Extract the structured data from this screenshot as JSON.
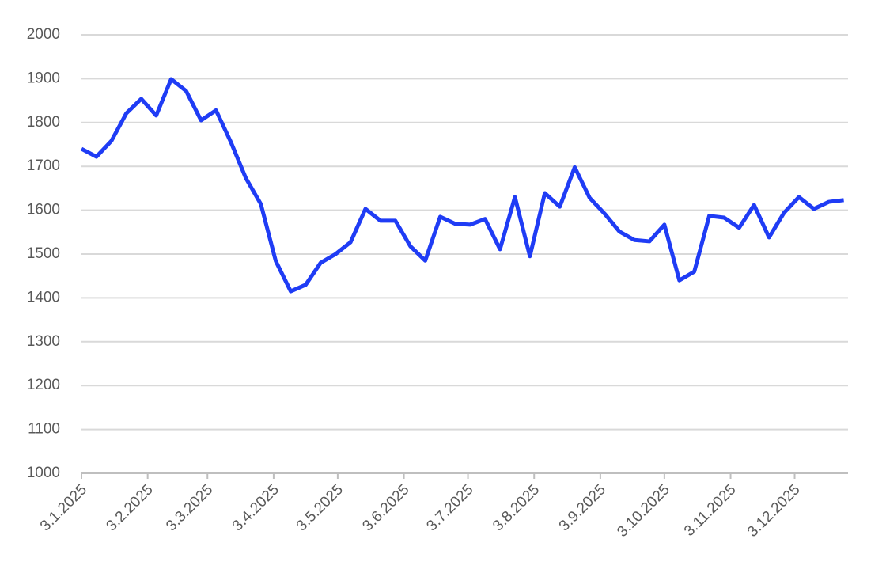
{
  "chart_data": {
    "type": "line",
    "x": [
      "2025-01-03",
      "2025-01-10",
      "2025-01-17",
      "2025-01-24",
      "2025-01-31",
      "2025-02-07",
      "2025-02-14",
      "2025-02-21",
      "2025-02-28",
      "2025-03-07",
      "2025-03-14",
      "2025-03-21",
      "2025-03-28",
      "2025-04-04",
      "2025-04-11",
      "2025-04-18",
      "2025-04-25",
      "2025-05-02",
      "2025-05-09",
      "2025-05-16",
      "2025-05-23",
      "2025-05-30",
      "2025-06-06",
      "2025-06-13",
      "2025-06-20",
      "2025-06-27",
      "2025-07-04",
      "2025-07-11",
      "2025-07-18",
      "2025-07-25",
      "2025-08-01",
      "2025-08-08",
      "2025-08-15",
      "2025-08-22",
      "2025-08-29",
      "2025-09-05",
      "2025-09-12",
      "2025-09-19",
      "2025-09-26",
      "2025-10-03",
      "2025-10-10",
      "2025-10-17",
      "2025-10-24",
      "2025-10-31",
      "2025-11-07",
      "2025-11-14",
      "2025-11-21",
      "2025-11-28",
      "2025-12-05",
      "2025-12-12",
      "2025-12-19",
      "2025-12-26"
    ],
    "series": [
      {
        "color": "#1f3cf5",
        "values": [
          1740,
          1722,
          1758,
          1821,
          1854,
          1816,
          1899,
          1872,
          1805,
          1828,
          1755,
          1673,
          1614,
          1484,
          1415,
          1430,
          1480,
          1500,
          1527,
          1603,
          1576,
          1576,
          1518,
          1485,
          1585,
          1569,
          1567,
          1580,
          1511,
          1630,
          1495,
          1639,
          1608,
          1698,
          1628,
          1592,
          1551,
          1532,
          1529,
          1567,
          1440,
          1460,
          1587,
          1583,
          1560,
          1612,
          1538,
          1594,
          1630,
          1603,
          1619,
          1623
        ]
      }
    ],
    "xlim": [
      "2025-01-03",
      "2025-12-28"
    ],
    "xticks": [
      {
        "value": "2025-01-03",
        "label": "3.1.2025"
      },
      {
        "value": "2025-02-03",
        "label": "3.2.2025"
      },
      {
        "value": "2025-03-03",
        "label": "3.3.2025"
      },
      {
        "value": "2025-04-03",
        "label": "3.4.2025"
      },
      {
        "value": "2025-05-03",
        "label": "3.5.2025"
      },
      {
        "value": "2025-06-03",
        "label": "3.6.2025"
      },
      {
        "value": "2025-07-03",
        "label": "3.7.2025"
      },
      {
        "value": "2025-08-03",
        "label": "3.8.2025"
      },
      {
        "value": "2025-09-03",
        "label": "3.9.2025"
      },
      {
        "value": "2025-10-03",
        "label": "3.10.2025"
      },
      {
        "value": "2025-11-03",
        "label": "3.11.2025"
      },
      {
        "value": "2025-12-03",
        "label": "3.12.2025"
      }
    ],
    "ylim": [
      1000,
      2000
    ],
    "yticks": [
      1000,
      1100,
      1200,
      1300,
      1400,
      1500,
      1600,
      1700,
      1800,
      1900,
      2000
    ],
    "grid": true
  }
}
